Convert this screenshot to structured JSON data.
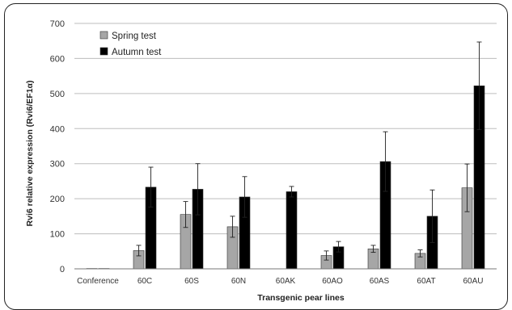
{
  "chart_data": {
    "type": "bar",
    "title": "",
    "xlabel": "Transgenic pear lines",
    "ylabel": "Rvi6 relative expression (Rvi6/EF1α)",
    "ylim": [
      0,
      700
    ],
    "yticks": [
      0,
      100,
      200,
      300,
      400,
      500,
      600,
      700
    ],
    "grid": true,
    "legend": "top-left",
    "categories": [
      "Conference",
      "60C",
      "60S",
      "60N",
      "60AK",
      "60AO",
      "60AS",
      "60AT",
      "60AU"
    ],
    "series": [
      {
        "name": "Spring test",
        "color": "#a6a6a6",
        "values": [
          1,
          52,
          155,
          120,
          0,
          38,
          57,
          44,
          231
        ],
        "errors": [
          0,
          15,
          37,
          30,
          0,
          13,
          10,
          10,
          68
        ]
      },
      {
        "name": "Autumn test",
        "color": "#000000",
        "values": [
          1,
          233,
          227,
          205,
          220,
          63,
          306,
          150,
          522
        ],
        "errors": [
          0,
          57,
          73,
          58,
          15,
          15,
          85,
          75,
          125
        ]
      }
    ]
  }
}
